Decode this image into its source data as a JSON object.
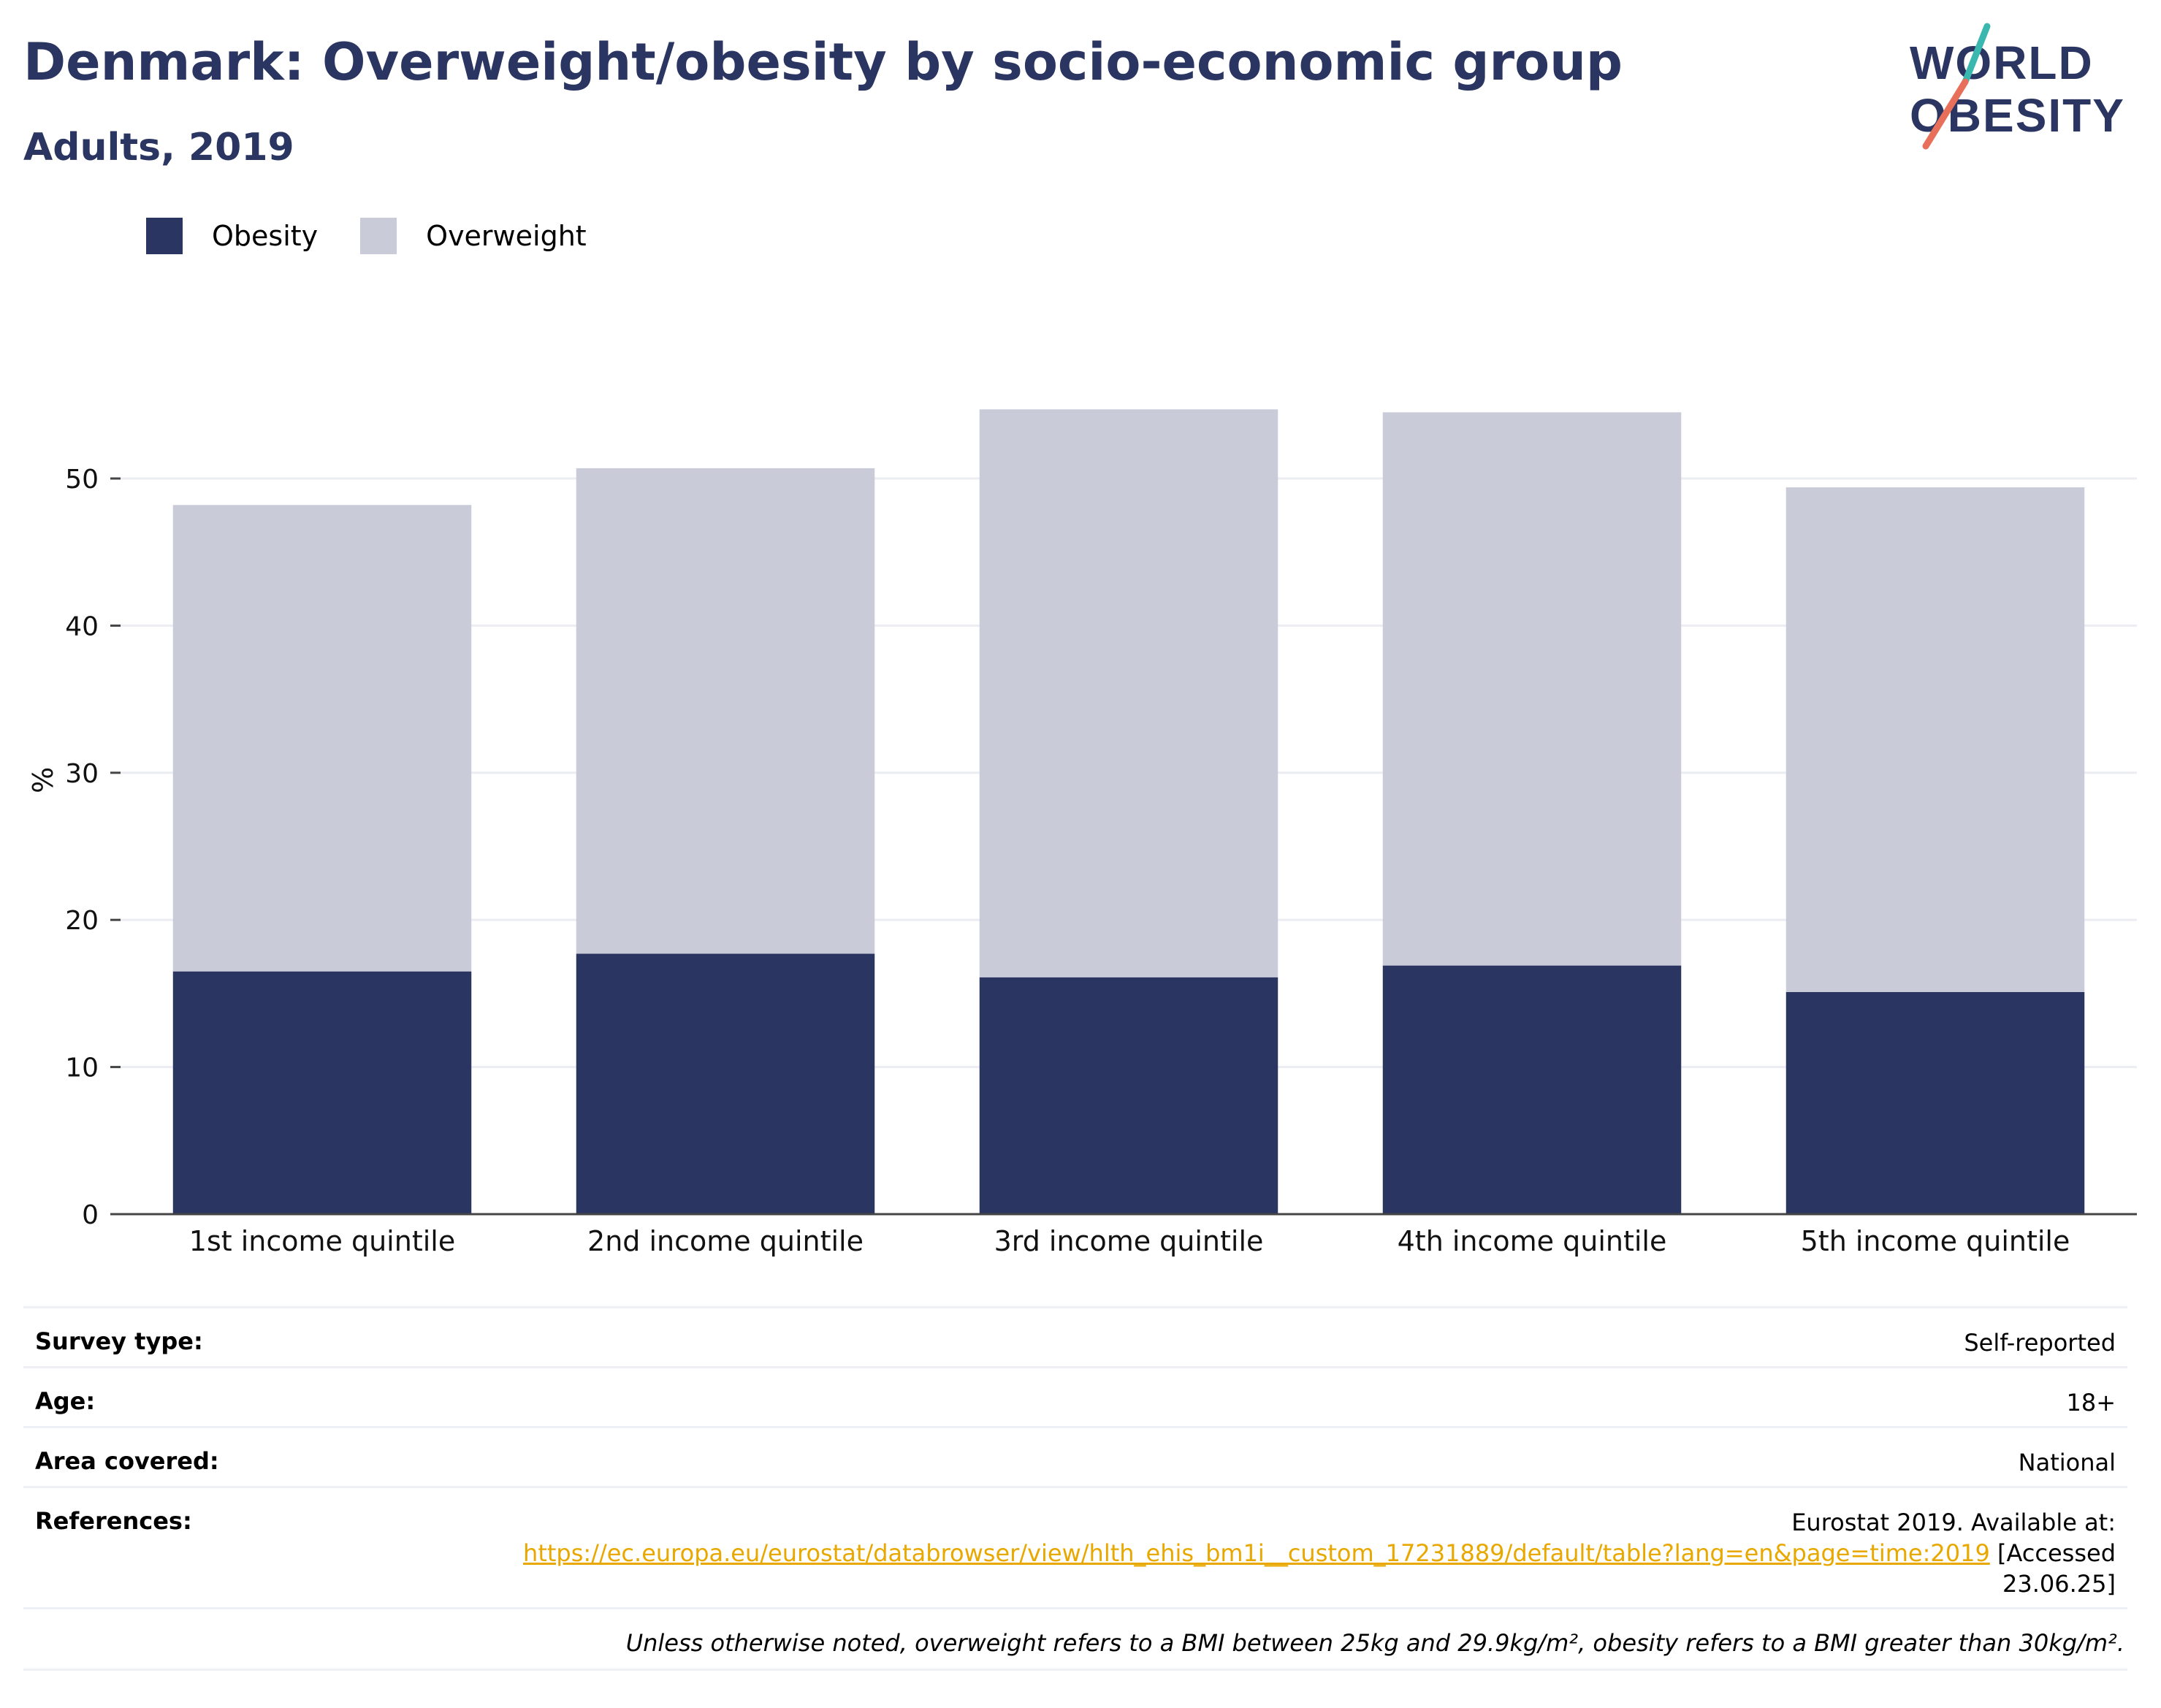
{
  "header": {
    "title": "Denmark: Overweight/obesity by socio-economic group",
    "subtitle": "Adults, 2019"
  },
  "logo": {
    "line1": "WORLD",
    "line2": "OBESITY"
  },
  "legend": [
    {
      "label": "Obesity",
      "color": "#2a3561"
    },
    {
      "label": "Overweight",
      "color": "#c9ccd8"
    }
  ],
  "chart_data": {
    "type": "bar",
    "stacked": true,
    "categories": [
      "1st income quintile",
      "2nd income quintile",
      "3rd income quintile",
      "4th income quintile",
      "5th income quintile"
    ],
    "series": [
      {
        "name": "Obesity",
        "color": "#2a3561",
        "values": [
          16.5,
          17.7,
          16.1,
          16.9,
          15.1
        ]
      },
      {
        "name": "Overweight",
        "color": "#c9ccd8",
        "values": [
          31.7,
          33.0,
          38.6,
          37.6,
          34.3
        ]
      }
    ],
    "ylabel": "%",
    "ylim": [
      0,
      60
    ],
    "yticks": [
      0,
      10,
      20,
      30,
      40,
      50
    ],
    "grid": true,
    "legend_position": "top-left"
  },
  "meta": {
    "survey_type": {
      "label": "Survey type:",
      "value": "Self-reported"
    },
    "age": {
      "label": "Age:",
      "value": "18+"
    },
    "area": {
      "label": "Area covered:",
      "value": "National"
    },
    "references": {
      "label": "References:",
      "line1": "Eurostat 2019. Available at:",
      "link": "https://ec.europa.eu/eurostat/databrowser/view/hlth_ehis_bm1i__custom_17231889/default/table?lang=en&page=time:2019",
      "after_link": " [Accessed",
      "line3": "23.06.25]"
    },
    "note": "Unless otherwise noted, overweight refers to a BMI between 25kg and 29.9kg/m², obesity refers to a BMI greater than 30kg/m²."
  }
}
